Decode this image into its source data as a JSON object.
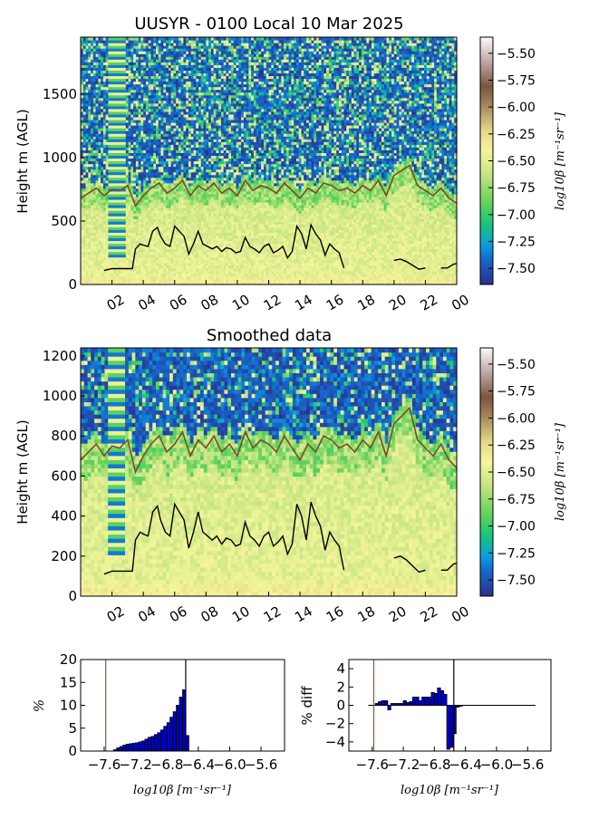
{
  "chart_data": [
    {
      "type": "heatmap",
      "title": "UUSYR - 0100 Local 10 Mar 2025",
      "ylabel": "Height m (AGL)",
      "xticks": [
        "02",
        "04",
        "06",
        "08",
        "10",
        "12",
        "14",
        "16",
        "18",
        "20",
        "22",
        "00"
      ],
      "ylim": [
        0,
        1950
      ],
      "yticks": [
        0,
        500,
        1000,
        1500
      ],
      "colorbar": {
        "label": "log10β [m⁻¹sr⁻¹]",
        "ticks": [
          "-5.50",
          "-5.75",
          "-6.00",
          "-6.25",
          "-6.50",
          "-6.75",
          "-7.00",
          "-7.25",
          "-7.50"
        ],
        "range": [
          -7.65,
          -5.35
        ]
      },
      "black_line_segments": [
        {
          "x": [
            1.5,
            2.0,
            2.5,
            3.0,
            3.3,
            3.5,
            3.8,
            4.0,
            4.3,
            4.6,
            4.9,
            5.1,
            5.4,
            5.7,
            6.0,
            6.3,
            6.6,
            6.9,
            7.2,
            7.5,
            7.8,
            8.1,
            8.4,
            8.7,
            9.0,
            9.3,
            9.6,
            9.9,
            10.2,
            10.5,
            10.8,
            11.1,
            11.4,
            11.7,
            12.0,
            12.3,
            12.6,
            12.9,
            13.2,
            13.5,
            13.8,
            14.1,
            14.4,
            14.7,
            15.0,
            15.3,
            15.6,
            15.9,
            16.2,
            16.5,
            16.8
          ],
          "y": [
            110,
            125,
            125,
            125,
            125,
            280,
            320,
            310,
            300,
            420,
            450,
            380,
            320,
            300,
            460,
            420,
            380,
            240,
            320,
            420,
            320,
            300,
            280,
            300,
            260,
            290,
            280,
            250,
            260,
            370,
            300,
            280,
            250,
            300,
            320,
            250,
            270,
            300,
            210,
            260,
            460,
            400,
            280,
            470,
            400,
            350,
            230,
            320,
            280,
            250,
            130
          ]
        },
        {
          "x": [
            20.0,
            20.4,
            20.8,
            21.2,
            21.6,
            22.0
          ],
          "y": [
            190,
            200,
            180,
            150,
            120,
            130
          ]
        },
        {
          "x": [
            23.0,
            23.4,
            23.8,
            24.0
          ],
          "y": [
            130,
            130,
            160,
            165
          ]
        }
      ],
      "brown_line": {
        "x": [
          0.0,
          0.5,
          1.0,
          1.5,
          2.0,
          2.5,
          3.0,
          3.5,
          4.0,
          4.5,
          5.0,
          5.5,
          6.0,
          6.5,
          7.0,
          7.5,
          8.0,
          8.5,
          9.0,
          9.5,
          10.0,
          10.5,
          11.0,
          11.5,
          12.0,
          12.5,
          13.0,
          13.5,
          14.0,
          14.5,
          15.0,
          15.5,
          16.0,
          16.5,
          17.0,
          17.5,
          18.0,
          18.5,
          19.0,
          19.5,
          20.0,
          20.5,
          21.0,
          21.5,
          22.0,
          22.5,
          23.0,
          23.5,
          24.0
        ],
        "y": [
          680,
          720,
          760,
          700,
          750,
          740,
          780,
          620,
          700,
          760,
          800,
          720,
          760,
          820,
          700,
          780,
          740,
          800,
          720,
          760,
          700,
          820,
          740,
          780,
          760,
          720,
          800,
          740,
          680,
          760,
          720,
          800,
          780,
          740,
          760,
          720,
          780,
          740,
          820,
          700,
          860,
          900,
          940,
          780,
          740,
          700,
          760,
          680,
          640
        ]
      }
    },
    {
      "type": "heatmap",
      "title": "Smoothed data",
      "ylabel": "Height m (AGL)",
      "xticks": [
        "02",
        "04",
        "06",
        "08",
        "10",
        "12",
        "14",
        "16",
        "18",
        "20",
        "22",
        "00"
      ],
      "ylim": [
        0,
        1240
      ],
      "yticks": [
        0,
        200,
        400,
        600,
        800,
        1000,
        1200
      ],
      "colorbar": {
        "label": "log10β [m⁻¹sr⁻¹]",
        "ticks": [
          "-5.50",
          "-5.75",
          "-6.00",
          "-6.25",
          "-6.50",
          "-6.75",
          "-7.00",
          "-7.25",
          "-7.50"
        ],
        "range": [
          -7.65,
          -5.35
        ]
      }
    },
    {
      "type": "bar",
      "ylabel": "%",
      "xlabel": "log10β [m⁻¹sr⁻¹]",
      "ylim": [
        0,
        20
      ],
      "yticks": [
        0,
        5,
        10,
        15,
        20
      ],
      "xticks": [
        "-7.6",
        "-7.2",
        "-6.8",
        "-6.4",
        "-6.0",
        "-5.6"
      ],
      "xlim": [
        -7.9,
        -5.3
      ],
      "bin_width": 0.04,
      "bins": [
        -7.48,
        -7.44,
        -7.4,
        -7.36,
        -7.32,
        -7.28,
        -7.24,
        -7.2,
        -7.16,
        -7.12,
        -7.08,
        -7.04,
        -7.0,
        -6.96,
        -6.92,
        -6.88,
        -6.84,
        -6.8,
        -6.76,
        -6.72,
        -6.68,
        -6.64,
        -6.6,
        -6.56
      ],
      "values": [
        0.3,
        0.7,
        1.0,
        1.3,
        1.5,
        1.6,
        1.7,
        1.8,
        2.0,
        2.2,
        2.6,
        3.0,
        3.2,
        3.6,
        4.0,
        4.6,
        5.4,
        6.2,
        7.4,
        8.6,
        10.0,
        11.8,
        13.4,
        3.4
      ],
      "ref_lines": {
        "brown": -7.58,
        "black": -6.56
      }
    },
    {
      "type": "bar",
      "ylabel": "% diff",
      "xlabel": "log10β [m⁻¹sr⁻¹]",
      "ylim": [
        -5,
        5
      ],
      "yticks": [
        -4,
        -2,
        0,
        2,
        4
      ],
      "xticks": [
        "-7.6",
        "-7.2",
        "-6.8",
        "-6.4",
        "-6.0",
        "-5.6"
      ],
      "xlim": [
        -7.9,
        -5.3
      ],
      "bin_width": 0.04,
      "bins": [
        -7.56,
        -7.52,
        -7.48,
        -7.44,
        -7.4,
        -7.36,
        -7.32,
        -7.28,
        -7.24,
        -7.2,
        -7.16,
        -7.12,
        -7.08,
        -7.04,
        -7.0,
        -6.96,
        -6.92,
        -6.88,
        -6.84,
        -6.8,
        -6.76,
        -6.72,
        -6.68,
        -6.64,
        -6.6,
        -6.56,
        -6.52,
        -6.48
      ],
      "values": [
        0.2,
        0.4,
        0.5,
        0.5,
        -0.5,
        0.2,
        0.2,
        0.2,
        0.2,
        0.5,
        0.3,
        0.4,
        0.9,
        0.9,
        0.5,
        0.9,
        0.9,
        0.9,
        1.4,
        1.3,
        1.9,
        1.6,
        1.2,
        -4.8,
        -4.6,
        -3.1,
        -0.2,
        -0.1
      ],
      "ref_lines": {
        "brown": -7.58,
        "black": -6.55
      }
    }
  ]
}
